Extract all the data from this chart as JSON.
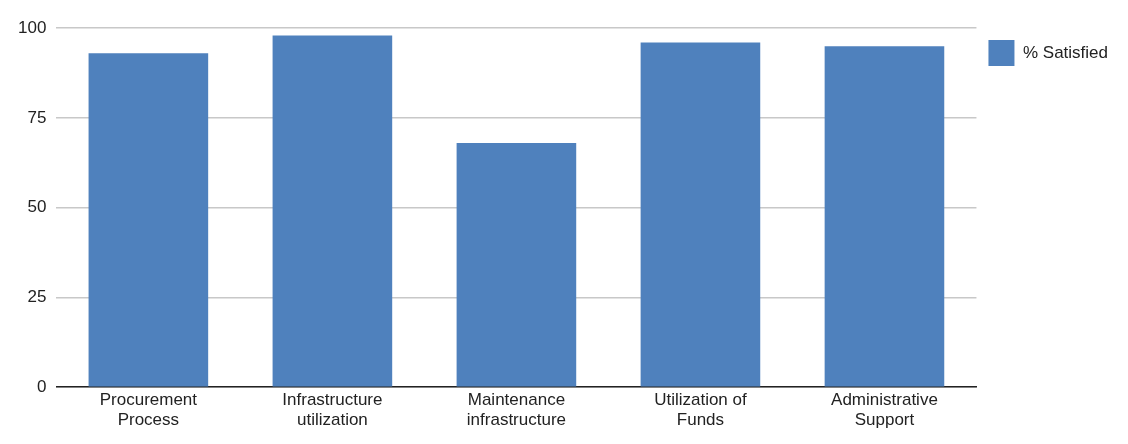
{
  "chart_data": {
    "type": "bar",
    "categories": [
      "Procurement Process",
      "Infrastructure utilization",
      "Maintenance infrastructure",
      "Utilization of Funds",
      "Administrative Support"
    ],
    "series": [
      {
        "name": "% Satisfied",
        "color": "#4f81bd",
        "values": [
          93,
          98,
          68,
          96,
          95
        ]
      }
    ],
    "ylim": [
      0,
      100
    ],
    "yticks": [
      0,
      25,
      50,
      75,
      100
    ],
    "grid": "y",
    "legend": "top right"
  }
}
